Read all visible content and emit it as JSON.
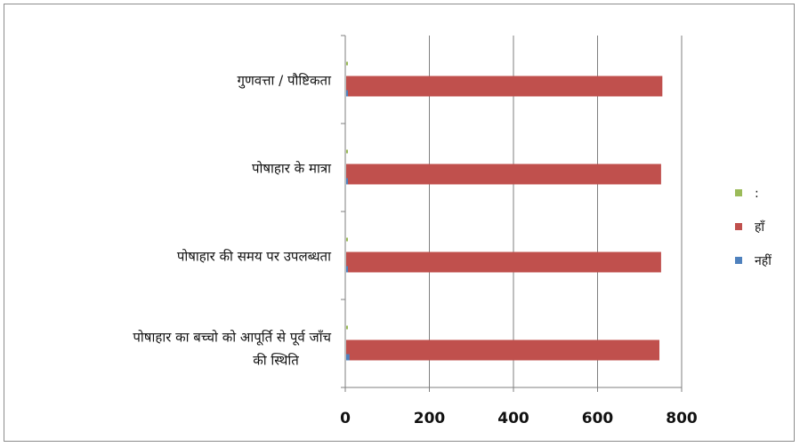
{
  "chart_data": {
    "type": "bar",
    "orientation": "horizontal",
    "categories": [
      "गुणवत्ता / पौष्टिकता",
      "पोषाहार के मात्रा",
      "पोषाहार की समय पर उपलब्धता",
      "पोषाहार का बच्चो को आपूर्ति से पूर्व जाँच की स्थिति"
    ],
    "series": [
      {
        "name": ":",
        "color": "#9bbb59",
        "values": [
          2,
          2,
          2,
          2
        ]
      },
      {
        "name": "हाँ",
        "color": "#c0504d",
        "values": [
          752,
          749,
          749,
          745
        ]
      },
      {
        "name": "नहीं",
        "color": "#4f81bd",
        "values": [
          3,
          3,
          3,
          8
        ]
      }
    ],
    "xlim": [
      0,
      800
    ],
    "xticks": [
      "0",
      "200",
      "400",
      "600",
      "800"
    ],
    "grid": true,
    "legend_position": "right",
    "title": "",
    "xlabel": "",
    "ylabel": ""
  }
}
